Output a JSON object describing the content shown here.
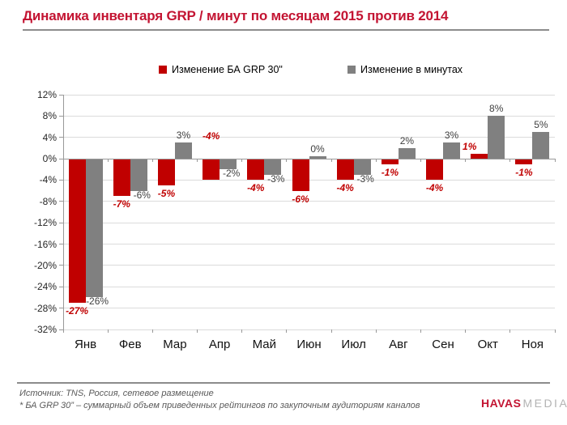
{
  "title": "Динамика инвентаря GRP / минут по месяцам 2015 против 2014",
  "legend": {
    "items": [
      {
        "label": "Изменение БА GRP 30\"",
        "color": "#C00000"
      },
      {
        "label": "Изменение в минутах",
        "color": "#808080"
      }
    ]
  },
  "chart_data": {
    "type": "bar",
    "title": "Динамика инвентаря GRP / минут по месяцам 2015 против 2014",
    "categories": [
      "Янв",
      "Фев",
      "Мар",
      "Апр",
      "Май",
      "Июн",
      "Июл",
      "Авг",
      "Сен",
      "Окт",
      "Ноя"
    ],
    "series": [
      {
        "name": "Изменение БА GRP 30\"",
        "key": "grp",
        "color": "#C00000",
        "values": [
          -27,
          -7,
          -5,
          -4,
          -4,
          -6,
          -4,
          -1,
          -4,
          1,
          -1
        ]
      },
      {
        "name": "Изменение в минутах",
        "key": "minutes",
        "color": "#808080",
        "values": [
          -26,
          -6,
          3,
          -2,
          -3,
          0,
          -3,
          2,
          3,
          8,
          5
        ]
      }
    ],
    "value_suffix": "%",
    "ylim": [
      -32,
      12
    ],
    "ytick_step": 4,
    "ytick_labels": [
      "12%",
      "8%",
      "4%",
      "0%",
      "-4%",
      "-8%",
      "-12%",
      "-16%",
      "-20%",
      "-24%",
      "-28%",
      "-32%"
    ],
    "grid": true,
    "legend_position": "top",
    "label_overrides": [
      {
        "series": 0,
        "index": 3,
        "mode": "above_axis"
      },
      {
        "series": 0,
        "index": 9,
        "dx": -12
      }
    ]
  },
  "footer": {
    "source_line": "Источник: TNS, Россия, сетевое размещение",
    "note_line": "* БА GRP 30” – суммарный объем приведенных рейтингов по закупочным аудиториям каналов",
    "logo": {
      "primary": "HAVAS",
      "secondary": "MEDIA"
    }
  },
  "colors": {
    "bar_red": "#C00000",
    "bar_gray": "#808080",
    "title_red": "#C31432",
    "grid": "#DBDBDB",
    "axis": "#999999",
    "label_red": "#C00000",
    "label_gray": "#3F3F3F",
    "footer_text": "#595959",
    "logo_gray": "#B3B3B3"
  }
}
